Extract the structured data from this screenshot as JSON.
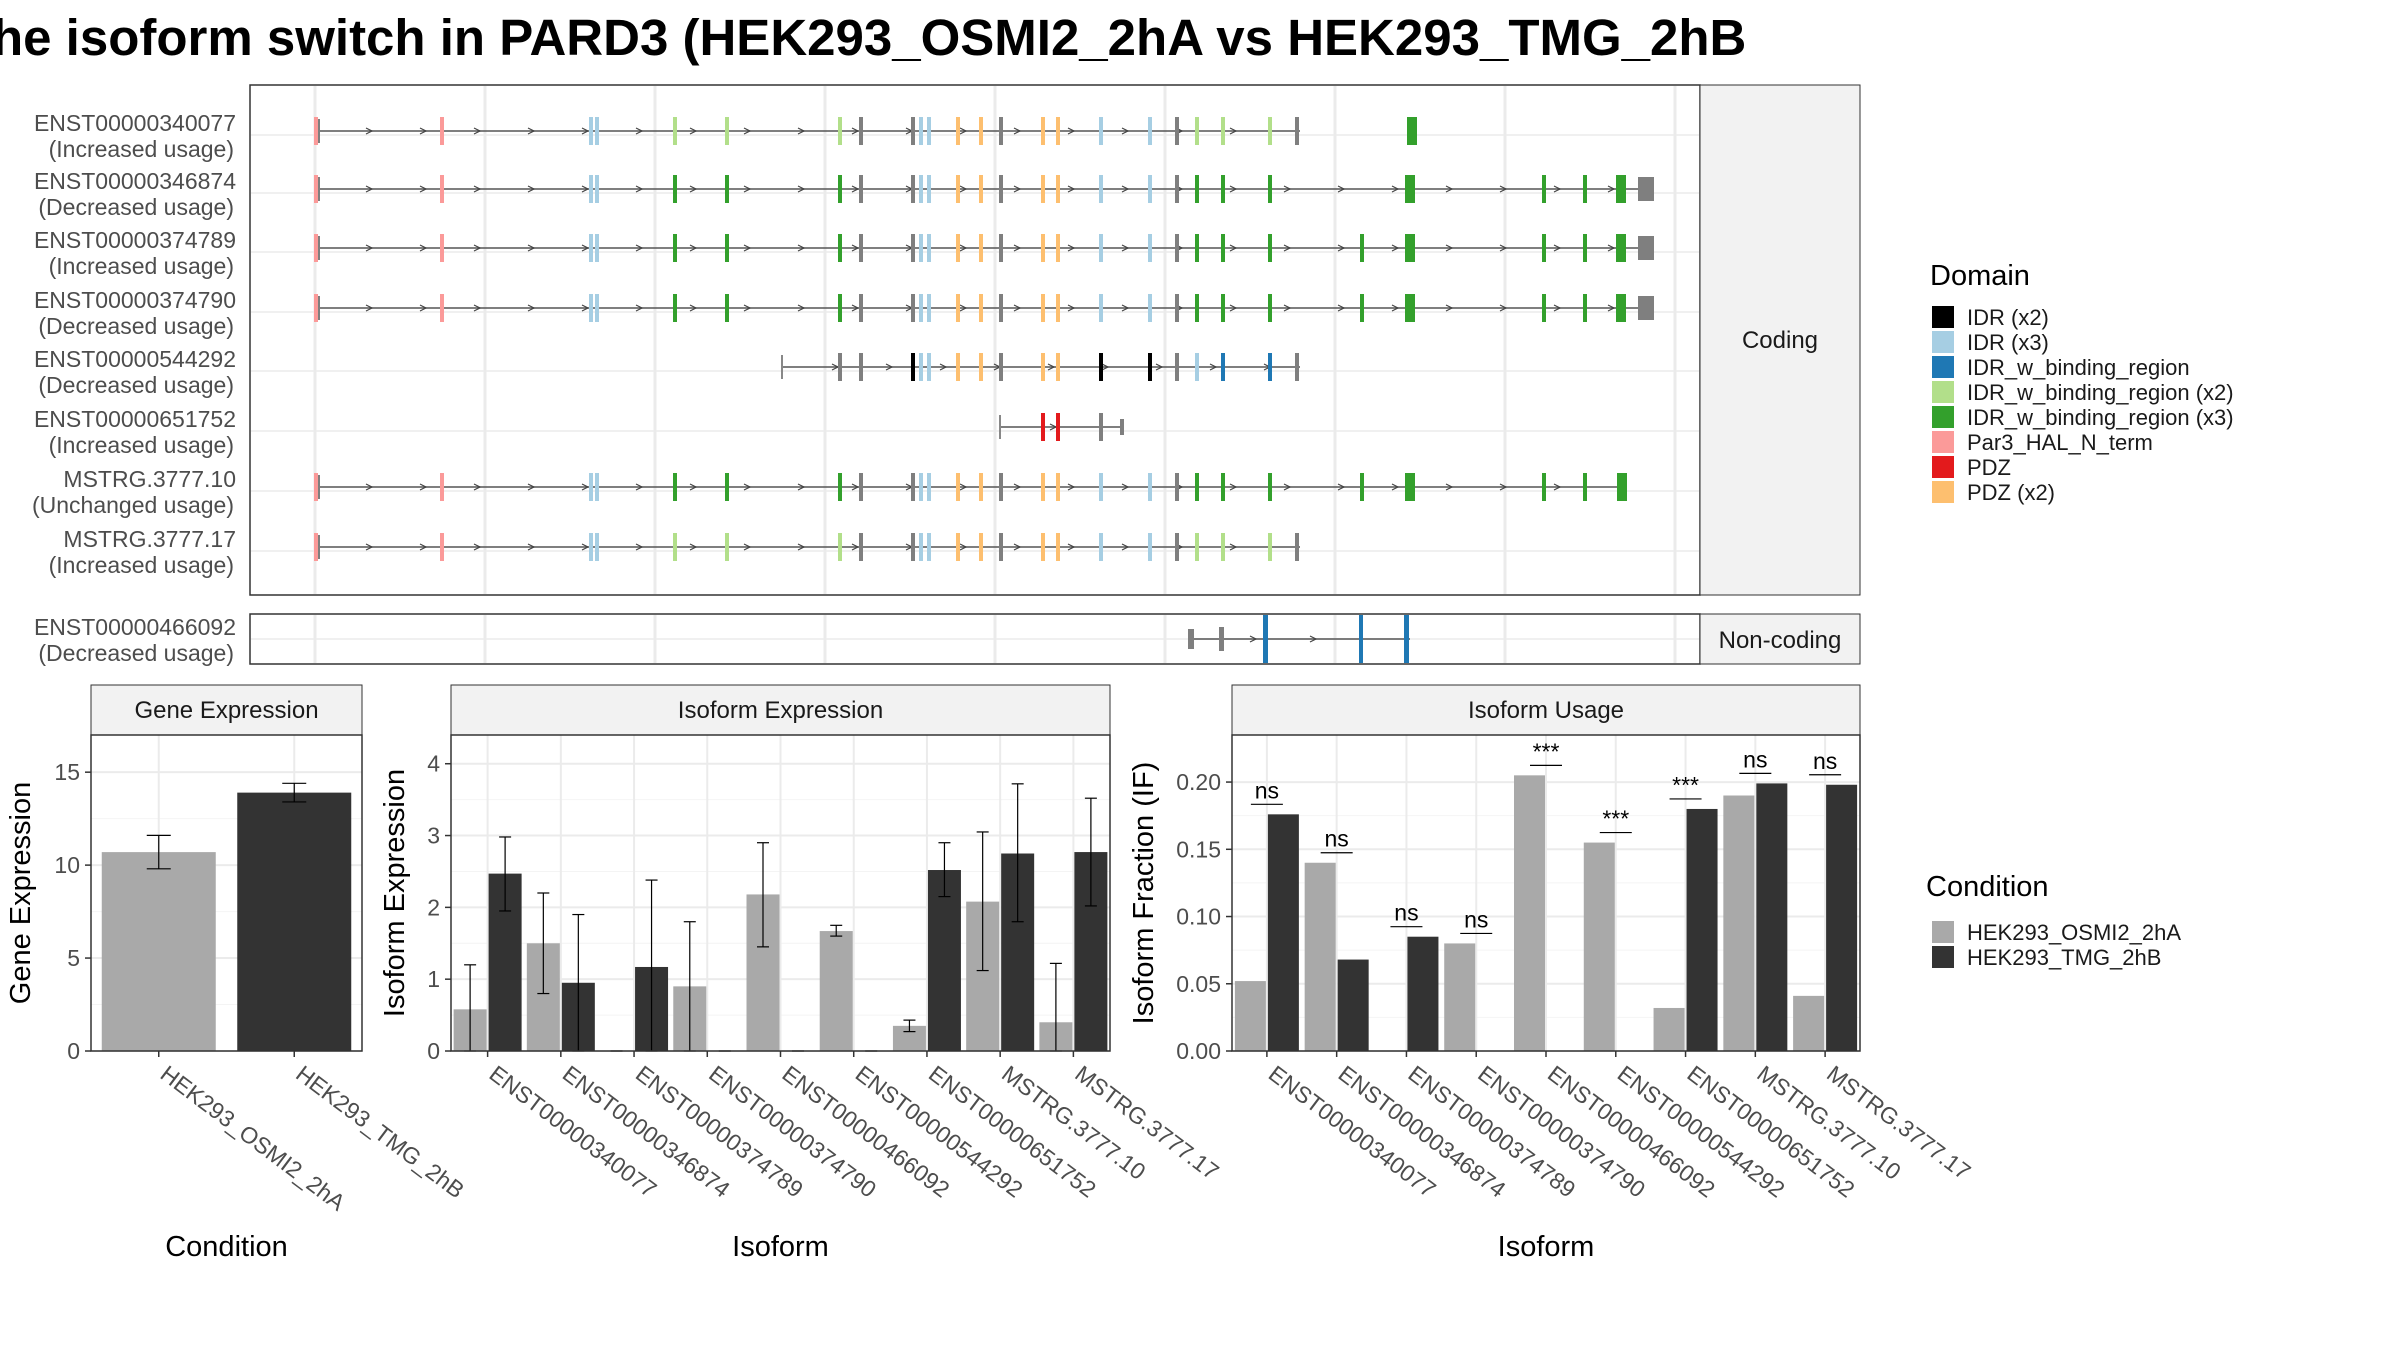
{
  "title": "he isoform switch in PARD3 (HEK293_OSMI2_2hA vs HEK293_TMG_2hB",
  "colors": {
    "condition1": "#a9a9a9",
    "condition2": "#333333",
    "intron": "#555555",
    "exon": "#7f7f7f",
    "strip": "#f2f2f2",
    "panel_border": "#333333",
    "grid": "#ebebeb"
  },
  "legend_domain": {
    "title": "Domain",
    "items": [
      {
        "label": "IDR (x2)",
        "color": "#000000"
      },
      {
        "label": "IDR (x3)",
        "color": "#a6cee3"
      },
      {
        "label": "IDR_w_binding_region",
        "color": "#1f78b4"
      },
      {
        "label": "IDR_w_binding_region (x2)",
        "color": "#b2df8a"
      },
      {
        "label": "IDR_w_binding_region (x3)",
        "color": "#33a02c"
      },
      {
        "label": "Par3_HAL_N_term",
        "color": "#fb9a99"
      },
      {
        "label": "PDZ",
        "color": "#e31a1c"
      },
      {
        "label": "PDZ (x2)",
        "color": "#fdbf6f"
      }
    ]
  },
  "legend_condition": {
    "title": "Condition",
    "items": [
      {
        "label": "HEK293_OSMI2_2hA",
        "color": "#a9a9a9"
      },
      {
        "label": "HEK293_TMG_2hB",
        "color": "#333333"
      }
    ]
  },
  "structure": {
    "coding_label": "Coding",
    "noncoding_label": "Non-coding",
    "coding_isoforms": [
      {
        "id": "ENST00000340077",
        "usage": "(Increased usage)"
      },
      {
        "id": "ENST00000346874",
        "usage": "(Decreased usage)"
      },
      {
        "id": "ENST00000374789",
        "usage": "(Increased usage)"
      },
      {
        "id": "ENST00000374790",
        "usage": "(Decreased usage)"
      },
      {
        "id": "ENST00000544292",
        "usage": "(Decreased usage)"
      },
      {
        "id": "ENST00000651752",
        "usage": "(Increased usage)"
      },
      {
        "id": "MSTRG.3777.10",
        "usage": "(Unchanged usage)"
      },
      {
        "id": "MSTRG.3777.17",
        "usage": "(Increased usage)"
      }
    ],
    "noncoding_isoforms": [
      {
        "id": "ENST00000466092",
        "usage": "(Decreased usage)"
      }
    ]
  },
  "chart_data": [
    {
      "type": "bar",
      "title": "Gene Expression",
      "xlabel": "Condition",
      "ylabel": "Gene Expression",
      "ylim": [
        0,
        17
      ],
      "yticks": [
        0,
        5,
        10,
        15
      ],
      "categories": [
        "HEK293_OSMI2_2hA",
        "HEK293_TMG_2hB"
      ],
      "values": [
        10.7,
        13.9
      ],
      "errors": [
        [
          9.8,
          11.6
        ],
        [
          13.4,
          14.4
        ]
      ]
    },
    {
      "type": "bar",
      "title": "Isoform Expression",
      "xlabel": "Isoform",
      "ylabel": "Isoform Expression",
      "ylim": [
        0,
        4.4
      ],
      "yticks": [
        0,
        1,
        2,
        3,
        4
      ],
      "categories": [
        "ENST00000340077",
        "ENST00000346874",
        "ENST00000374789",
        "ENST00000374790",
        "ENST00000466092",
        "ENST00000544292",
        "ENST00000651752",
        "MSTRG.3777.10",
        "MSTRG.3777.17"
      ],
      "series": [
        {
          "name": "HEK293_OSMI2_2hA",
          "values": [
            0.58,
            1.5,
            0.0,
            0.9,
            2.18,
            1.67,
            0.35,
            2.08,
            0.4
          ],
          "errors": [
            [
              0,
              1.2
            ],
            [
              0.8,
              2.2
            ],
            [
              0,
              0
            ],
            [
              0,
              1.8
            ],
            [
              1.45,
              2.9
            ],
            [
              1.6,
              1.75
            ],
            [
              0.27,
              0.43
            ],
            [
              1.12,
              3.05
            ],
            [
              0,
              1.22
            ]
          ]
        },
        {
          "name": "HEK293_TMG_2hB",
          "values": [
            2.47,
            0.95,
            1.17,
            0.0,
            0.0,
            0.0,
            2.52,
            2.75,
            2.77
          ],
          "errors": [
            [
              1.95,
              2.98
            ],
            [
              0,
              1.9
            ],
            [
              0,
              2.38
            ],
            [
              0,
              0
            ],
            [
              0,
              0
            ],
            [
              0,
              0
            ],
            [
              2.15,
              2.9
            ],
            [
              1.8,
              3.72
            ],
            [
              2.02,
              3.52
            ]
          ]
        }
      ]
    },
    {
      "type": "bar",
      "title": "Isoform Usage",
      "xlabel": "Isoform",
      "ylabel": "Isoform Fraction (IF)",
      "ylim": [
        0,
        0.235
      ],
      "yticks": [
        0.0,
        0.05,
        0.1,
        0.15,
        0.2
      ],
      "ytick_labels": [
        "0.00",
        "0.05",
        "0.10",
        "0.15",
        "0.20"
      ],
      "categories": [
        "ENST00000340077",
        "ENST00000346874",
        "ENST00000374789",
        "ENST00000374790",
        "ENST00000466092",
        "ENST00000544292",
        "ENST00000651752",
        "MSTRG.3777.10",
        "MSTRG.3777.17"
      ],
      "series": [
        {
          "name": "HEK293_OSMI2_2hA",
          "values": [
            0.052,
            0.14,
            0.0,
            0.08,
            0.205,
            0.155,
            0.032,
            0.19,
            0.041
          ]
        },
        {
          "name": "HEK293_TMG_2hB",
          "values": [
            0.176,
            0.068,
            0.085,
            0.0,
            0.0,
            0.0,
            0.18,
            0.199,
            0.198
          ]
        }
      ],
      "significance": [
        "ns",
        "ns",
        "ns",
        "ns",
        "***",
        "***",
        "***",
        "ns",
        "ns"
      ]
    }
  ]
}
